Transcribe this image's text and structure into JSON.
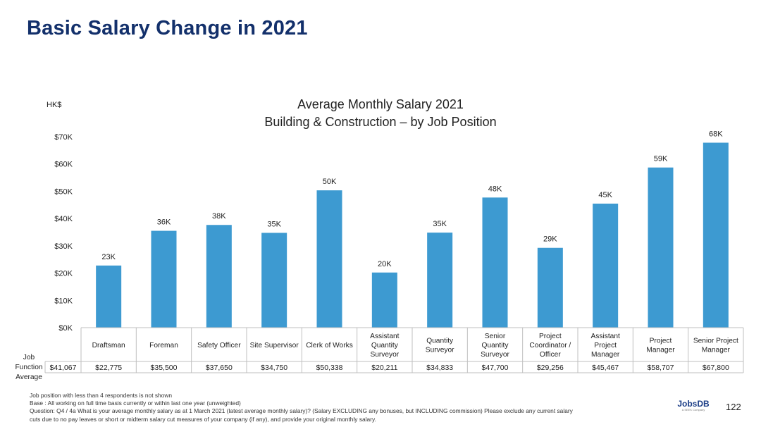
{
  "slide": {
    "title": "Basic Salary Change in 2021",
    "page_number": "122"
  },
  "logo": {
    "brand": "JobsDB",
    "sub": "A SEEK Company"
  },
  "colors": {
    "bar": "#3d9ad1",
    "title": "#13306b",
    "grid": "#cccccc"
  },
  "chart_data": {
    "type": "bar",
    "title": [
      "Average Monthly Salary 2021",
      "Building & Construction – by Job Position"
    ],
    "unit_label": "HK$",
    "ylabel": "HK$",
    "ylim": [
      0,
      70000
    ],
    "y_ticks": [
      {
        "value": 0,
        "label": "$0K"
      },
      {
        "value": 10000,
        "label": "$10K"
      },
      {
        "value": 20000,
        "label": "$20K"
      },
      {
        "value": 30000,
        "label": "$30K"
      },
      {
        "value": 40000,
        "label": "$40K"
      },
      {
        "value": 50000,
        "label": "$50K"
      },
      {
        "value": 60000,
        "label": "$60K"
      },
      {
        "value": 70000,
        "label": "$70K"
      }
    ],
    "categories": [
      [
        "Draftsman"
      ],
      [
        "Foreman"
      ],
      [
        "Safety Officer"
      ],
      [
        "Site Supervisor"
      ],
      [
        "Clerk of Works"
      ],
      [
        "Assistant",
        "Quantity",
        "Surveyor"
      ],
      [
        "Quantity",
        "Surveyor"
      ],
      [
        "Senior",
        "Quantity",
        "Surveyor"
      ],
      [
        "Project",
        "Coordinator /",
        "Officer"
      ],
      [
        "Assistant",
        "Project",
        "Manager"
      ],
      [
        "Project",
        "Manager"
      ],
      [
        "Senior Project",
        "Manager"
      ]
    ],
    "values": [
      22775,
      35500,
      37650,
      34750,
      50338,
      20211,
      34833,
      47700,
      29256,
      45467,
      58707,
      67800
    ],
    "data_labels": [
      "23K",
      "36K",
      "38K",
      "35K",
      "50K",
      "20K",
      "35K",
      "48K",
      "29K",
      "45K",
      "59K",
      "68K"
    ],
    "table_row": {
      "header": [
        "Job",
        "Function",
        "Average"
      ],
      "overall": "$41,067",
      "values": [
        "$22,775",
        "$35,500",
        "$37,650",
        "$34,750",
        "$50,338",
        "$20,211",
        "$34,833",
        "$47,700",
        "$29,256",
        "$45,467",
        "$58,707",
        "$67,800"
      ]
    }
  },
  "notes": [
    "Job position with less than 4 respondents is not shown",
    "Base : All working on full time basis  currently or within last one year (unweighted)",
    "Question: Q4 / 4a  What is your average monthly salary as at 1 March 2021 (latest average monthly salary)? (Salary EXCLUDING any bonuses, but INCLUDING commission) Please exclude any current salary",
    "cuts due to no pay leaves or short or midterm salary cut measures of your company (if any), and provide your original monthly salary."
  ]
}
